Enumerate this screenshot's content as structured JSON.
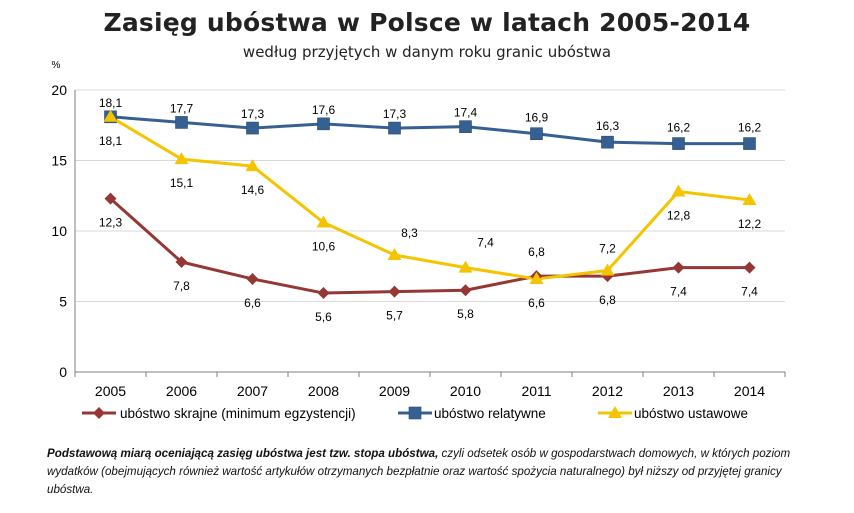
{
  "title": "Zasięg ubóstwa w Polsce w latach 2005-2014",
  "subtitle": "według przyjętych w danym roku granic ubóstwa",
  "footnote": {
    "bold": "Podstawową miarą oceniającą zasięg ubóstwa jest tzw. stopa ubóstwa,",
    "rest": " czyli odsetek osób w gospodarstwach domowych, w których poziom wydatków (obejmujących również wartość artykułów otrzymanych bezpłatnie oraz wartość spożycia naturalnego) był niższy od przyjętej granicy ubóstwa."
  },
  "colors": {
    "extreme": "#953735",
    "relative": "#376092",
    "statutory": "#F5C400",
    "grid": "#d9d9d9",
    "axis": "#7f7f7f"
  },
  "chart_data": {
    "type": "line",
    "title": "Zasięg ubóstwa w Polsce w latach 2005-2014",
    "subtitle": "według przyjętych w danym roku granic ubóstwa",
    "ylabel": "%",
    "categories": [
      "2005",
      "2006",
      "2007",
      "2008",
      "2009",
      "2010",
      "2011",
      "2012",
      "2013",
      "2014"
    ],
    "ylim": [
      0,
      20
    ],
    "yticks": [
      0,
      5,
      10,
      15,
      20
    ],
    "grid": true,
    "legend_position": "bottom",
    "series": [
      {
        "name": "ubóstwo skrajne (minimum egzystencji)",
        "key": "extreme",
        "marker": "diamond",
        "values": [
          12.3,
          7.8,
          6.6,
          5.6,
          5.7,
          5.8,
          6.8,
          6.8,
          7.4,
          7.4
        ],
        "labels": [
          "12,3",
          "7,8",
          "6,6",
          "5,6",
          "5,7",
          "5,8",
          "6,8",
          "6,8",
          "7,4",
          "7,4"
        ]
      },
      {
        "name": "ubóstwo relatywne",
        "key": "relative",
        "marker": "square",
        "values": [
          18.1,
          17.7,
          17.3,
          17.6,
          17.3,
          17.4,
          16.9,
          16.3,
          16.2,
          16.2
        ],
        "labels": [
          "18,1",
          "17,7",
          "17,3",
          "17,6",
          "17,3",
          "17,4",
          "16,9",
          "16,3",
          "16,2",
          "16,2"
        ]
      },
      {
        "name": "ubóstwo ustawowe",
        "key": "statutory",
        "marker": "triangle",
        "values": [
          18.1,
          15.1,
          14.6,
          10.6,
          8.3,
          7.4,
          6.6,
          7.2,
          12.8,
          12.2
        ],
        "labels": [
          "18,1",
          "15,1",
          "14,6",
          "10,6",
          "8,3",
          "7,4",
          "6,6",
          "7,2",
          "12,8",
          "12,2"
        ]
      }
    ]
  }
}
